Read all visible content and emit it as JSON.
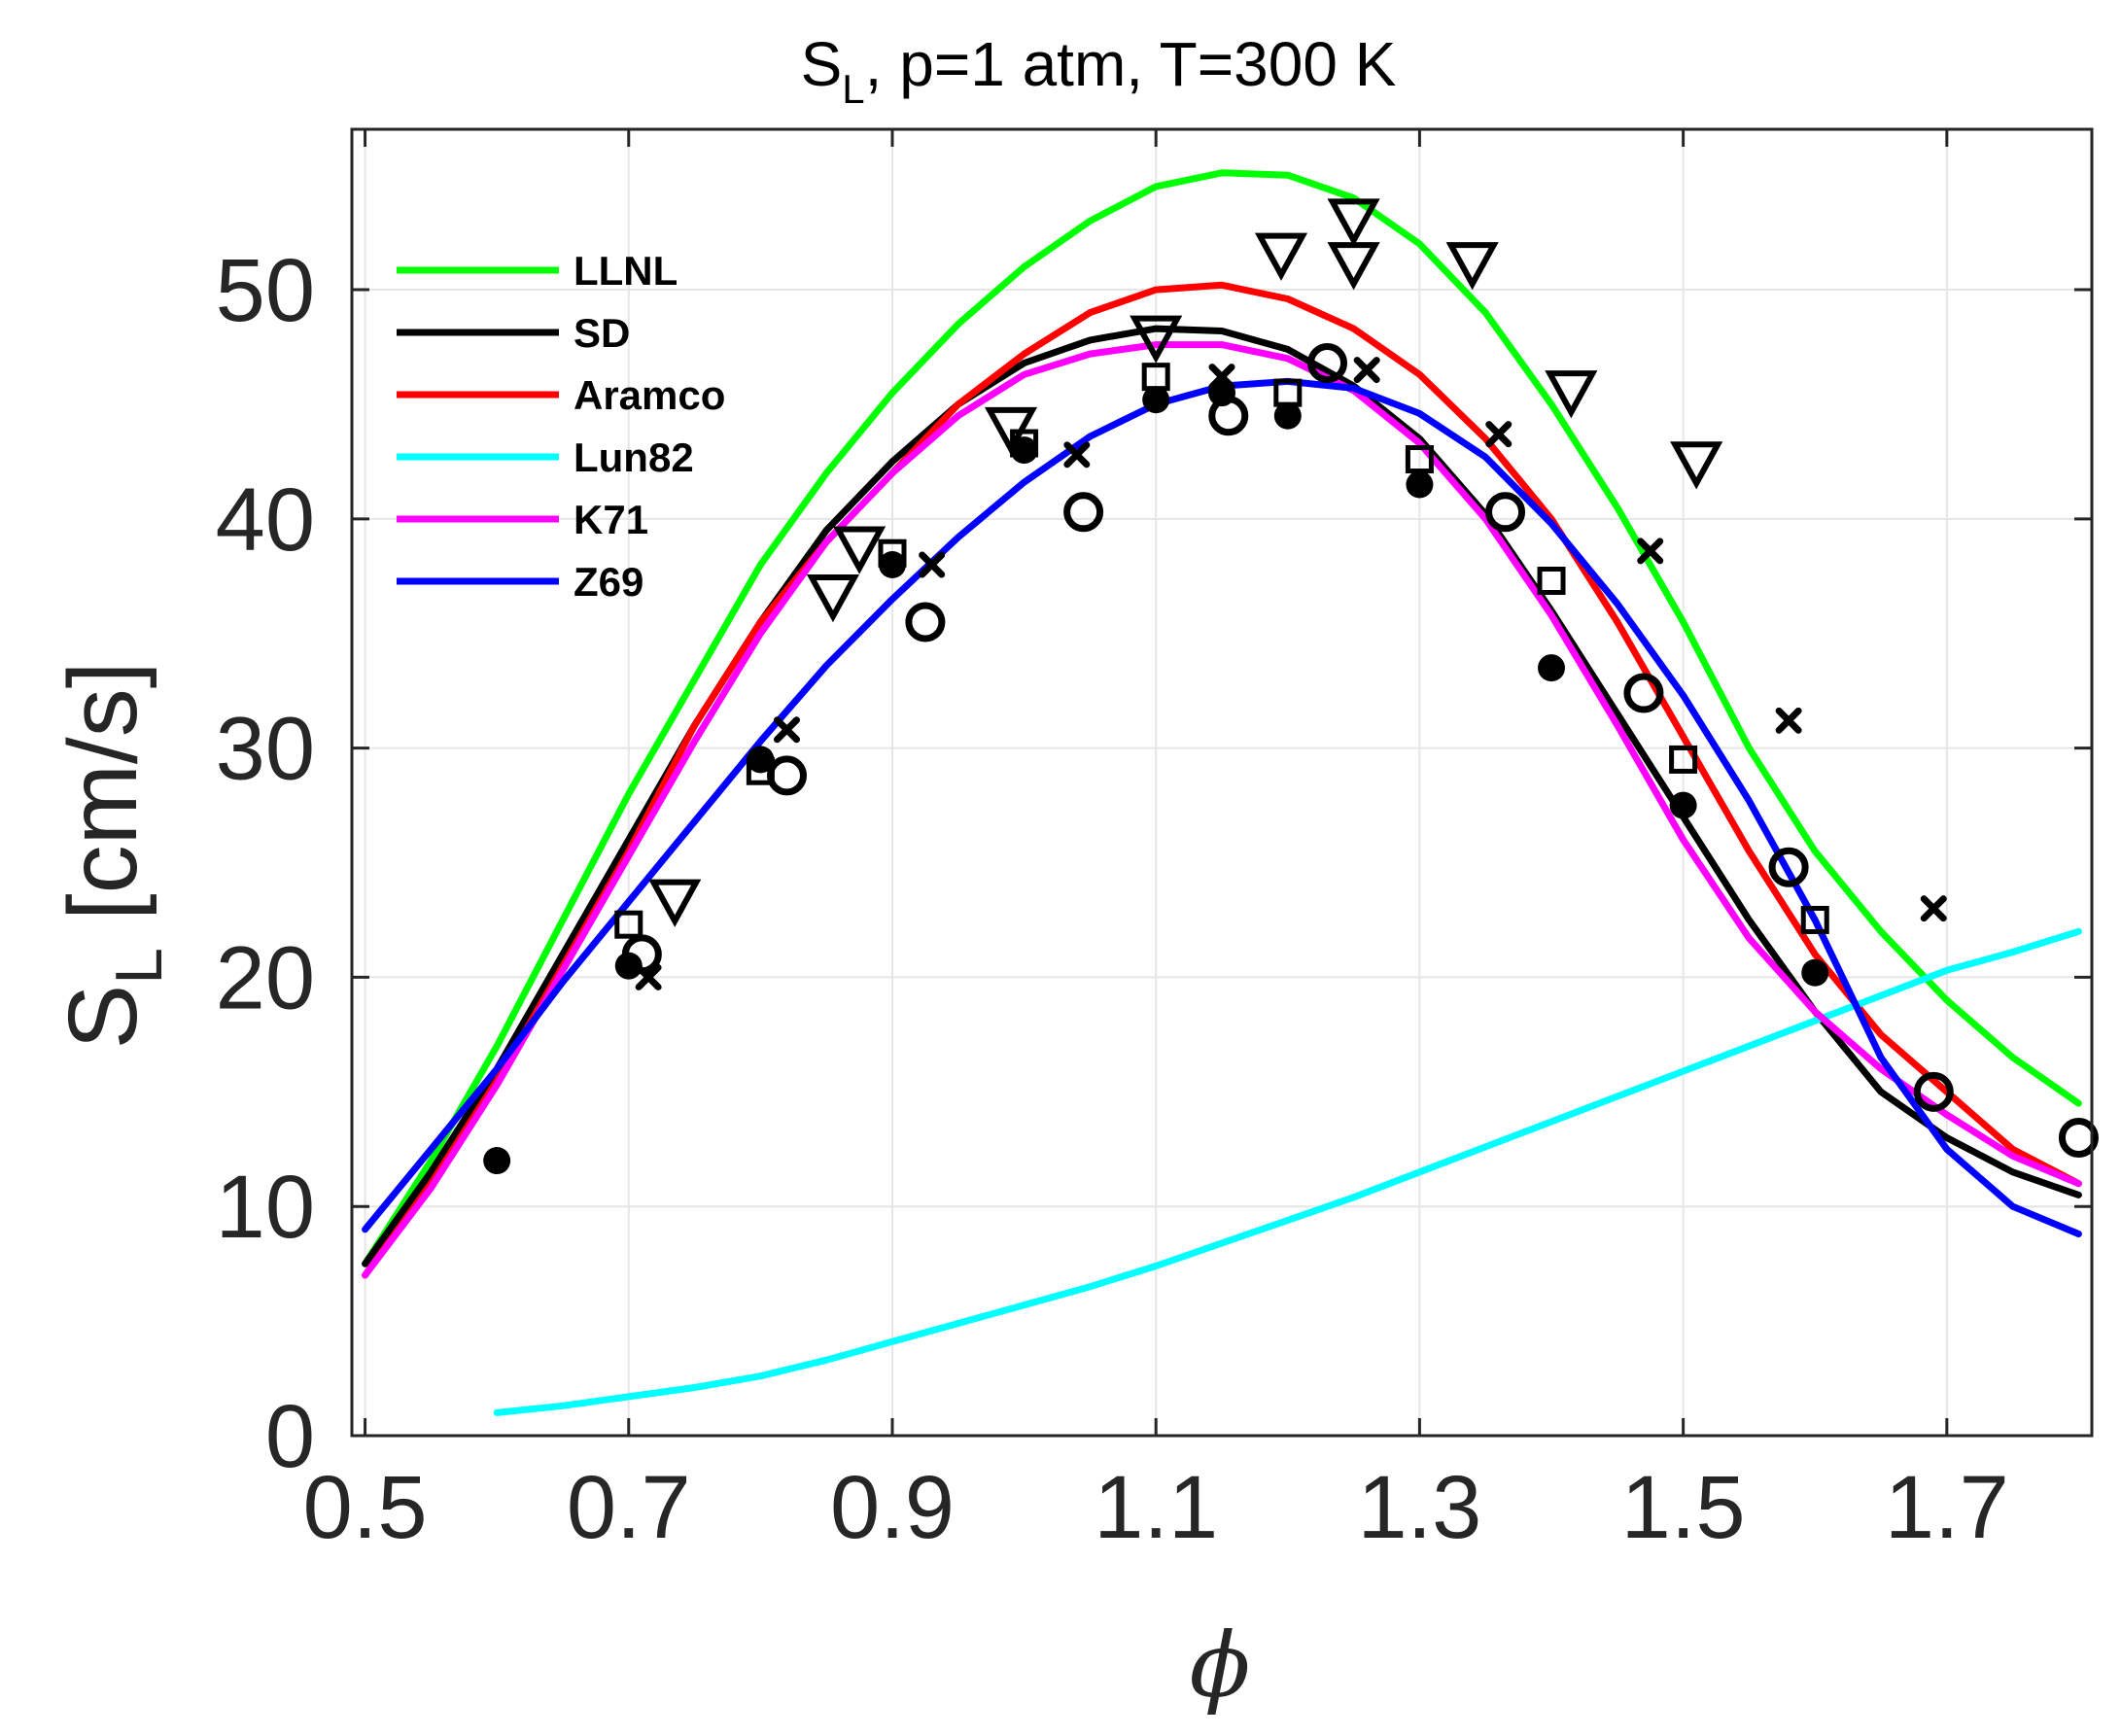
{
  "chart_data": {
    "type": "line",
    "title": "S_L, p=1 atm, T=300 K",
    "title_main": "S",
    "title_sub": "L",
    "title_rest": ", p=1 atm, T=300 K",
    "xlabel": "ϕ",
    "ylabel_main": "S",
    "ylabel_sub": "L",
    "ylabel_units": " [cm/s]",
    "xlim": [
      0.49,
      1.81
    ],
    "ylim": [
      0,
      57
    ],
    "xticks": [
      0.5,
      0.7,
      0.9,
      1.1,
      1.3,
      1.5,
      1.7
    ],
    "xtick_labels": [
      "0.5",
      "0.7",
      "0.9",
      "1.1",
      "1.3",
      "1.5",
      "1.7"
    ],
    "yticks": [
      0,
      10,
      20,
      30,
      40,
      50
    ],
    "ytick_labels": [
      "0",
      "10",
      "20",
      "30",
      "40",
      "50"
    ],
    "grid": true,
    "legend_position": "top-left",
    "series": [
      {
        "name": "LLNL",
        "color": "#00ff00",
        "x": [
          0.5,
          0.55,
          0.6,
          0.65,
          0.7,
          0.75,
          0.8,
          0.85,
          0.9,
          0.95,
          1.0,
          1.05,
          1.1,
          1.15,
          1.2,
          1.25,
          1.3,
          1.35,
          1.4,
          1.45,
          1.5,
          1.55,
          1.6,
          1.65,
          1.7,
          1.75,
          1.8
        ],
        "y": [
          7.5,
          12.0,
          17.0,
          22.5,
          28.0,
          33.0,
          38.0,
          42.0,
          45.5,
          48.5,
          51.0,
          53.0,
          54.5,
          55.1,
          55.0,
          54.0,
          52.0,
          49.0,
          45.0,
          40.5,
          35.5,
          30.0,
          25.5,
          22.0,
          19.0,
          16.5,
          14.5
        ]
      },
      {
        "name": "SD",
        "color": "#000000",
        "x": [
          0.5,
          0.55,
          0.6,
          0.65,
          0.7,
          0.75,
          0.8,
          0.85,
          0.9,
          0.95,
          1.0,
          1.05,
          1.1,
          1.15,
          1.2,
          1.25,
          1.3,
          1.35,
          1.4,
          1.45,
          1.5,
          1.55,
          1.6,
          1.65,
          1.7,
          1.75,
          1.8
        ],
        "y": [
          7.5,
          11.5,
          16.0,
          21.0,
          26.0,
          31.0,
          35.5,
          39.5,
          42.5,
          45.0,
          46.8,
          47.8,
          48.3,
          48.2,
          47.4,
          45.8,
          43.5,
          40.2,
          36.0,
          31.5,
          27.0,
          22.5,
          18.5,
          15.0,
          13.0,
          11.5,
          10.5
        ]
      },
      {
        "name": "Aramco",
        "color": "#ff0000",
        "x": [
          0.5,
          0.55,
          0.6,
          0.65,
          0.7,
          0.75,
          0.8,
          0.85,
          0.9,
          0.95,
          1.0,
          1.05,
          1.1,
          1.15,
          1.2,
          1.25,
          1.3,
          1.35,
          1.4,
          1.45,
          1.5,
          1.55,
          1.6,
          1.65,
          1.7,
          1.75,
          1.8
        ],
        "y": [
          7.0,
          11.0,
          15.5,
          20.5,
          25.5,
          31.0,
          35.5,
          39.0,
          42.0,
          45.0,
          47.2,
          49.0,
          50.0,
          50.2,
          49.6,
          48.3,
          46.3,
          43.5,
          40.0,
          35.5,
          30.5,
          25.5,
          21.0,
          17.5,
          15.0,
          12.5,
          11.0
        ]
      },
      {
        "name": "Lun82",
        "color": "#00ffff",
        "x": [
          0.6,
          0.65,
          0.7,
          0.75,
          0.8,
          0.85,
          0.9,
          0.95,
          1.0,
          1.05,
          1.1,
          1.15,
          1.2,
          1.25,
          1.3,
          1.35,
          1.4,
          1.45,
          1.5,
          1.55,
          1.6,
          1.65,
          1.7,
          1.75,
          1.8
        ],
        "y": [
          1.0,
          1.3,
          1.7,
          2.1,
          2.6,
          3.3,
          4.1,
          4.9,
          5.7,
          6.5,
          7.4,
          8.4,
          9.4,
          10.4,
          11.5,
          12.6,
          13.7,
          14.8,
          15.9,
          17.0,
          18.1,
          19.2,
          20.3,
          21.1,
          22.0
        ]
      },
      {
        "name": "K71",
        "color": "#ff00ff",
        "x": [
          0.5,
          0.55,
          0.6,
          0.65,
          0.7,
          0.75,
          0.8,
          0.85,
          0.9,
          0.95,
          1.0,
          1.05,
          1.1,
          1.15,
          1.2,
          1.25,
          1.3,
          1.35,
          1.4,
          1.45,
          1.5,
          1.55,
          1.6,
          1.65,
          1.7,
          1.75,
          1.8
        ],
        "y": [
          7.0,
          10.8,
          15.3,
          20.3,
          25.3,
          30.3,
          35.0,
          39.0,
          42.0,
          44.5,
          46.3,
          47.2,
          47.6,
          47.6,
          47.0,
          45.6,
          43.3,
          40.0,
          35.8,
          31.0,
          26.0,
          21.7,
          18.5,
          16.0,
          14.0,
          12.2,
          11.0
        ]
      },
      {
        "name": "Z69",
        "color": "#0000ff",
        "x": [
          0.5,
          0.55,
          0.6,
          0.65,
          0.7,
          0.75,
          0.8,
          0.85,
          0.9,
          0.95,
          1.0,
          1.05,
          1.1,
          1.15,
          1.2,
          1.25,
          1.3,
          1.35,
          1.4,
          1.45,
          1.5,
          1.55,
          1.6,
          1.65,
          1.7,
          1.75,
          1.8
        ],
        "y": [
          9.0,
          12.5,
          16.0,
          19.8,
          23.3,
          26.8,
          30.3,
          33.6,
          36.5,
          39.2,
          41.6,
          43.6,
          45.0,
          45.8,
          46.0,
          45.7,
          44.6,
          42.7,
          39.8,
          36.3,
          32.3,
          27.7,
          22.5,
          16.5,
          12.5,
          10.0,
          8.8
        ]
      }
    ],
    "markers": [
      {
        "name": "filled circle",
        "symbol": "filled-circle",
        "x": [
          0.6,
          0.7,
          0.8,
          0.9,
          1.0,
          1.1,
          1.15,
          1.2,
          1.3,
          1.4,
          1.5,
          1.6
        ],
        "y": [
          12.0,
          20.5,
          29.5,
          38.0,
          43.0,
          45.2,
          45.5,
          44.5,
          41.5,
          33.5,
          27.5,
          20.2
        ]
      },
      {
        "name": "open circle",
        "symbol": "open-circle",
        "x": [
          0.71,
          0.82,
          0.925,
          1.045,
          1.155,
          1.23,
          1.365,
          1.47,
          1.58,
          1.69,
          1.8
        ],
        "y": [
          21.0,
          28.8,
          35.5,
          40.3,
          44.5,
          46.8,
          40.3,
          32.4,
          24.8,
          15.0,
          13.0
        ]
      },
      {
        "name": "open square",
        "symbol": "open-square",
        "x": [
          0.7,
          0.8,
          0.9,
          1.0,
          1.1,
          1.2,
          1.3,
          1.4,
          1.5,
          1.6
        ],
        "y": [
          22.3,
          29.0,
          38.5,
          43.3,
          46.2,
          45.5,
          42.6,
          37.3,
          29.5,
          22.5
        ]
      },
      {
        "name": "x mark",
        "symbol": "x",
        "x": [
          0.715,
          0.82,
          0.93,
          1.04,
          1.15,
          1.26,
          1.36,
          1.475,
          1.58,
          1.69
        ],
        "y": [
          20.0,
          30.8,
          38.0,
          42.8,
          46.2,
          46.5,
          43.7,
          38.6,
          31.2,
          23.0
        ]
      },
      {
        "name": "open down triangle",
        "symbol": "down-triangle",
        "x": [
          0.735,
          0.855,
          0.875,
          0.99,
          1.1,
          1.195,
          1.25,
          1.25,
          1.34,
          1.415,
          1.51
        ],
        "y": [
          23.3,
          36.6,
          38.7,
          43.9,
          47.9,
          51.5,
          53.0,
          51.1,
          51.1,
          45.5,
          42.4
        ]
      }
    ]
  }
}
